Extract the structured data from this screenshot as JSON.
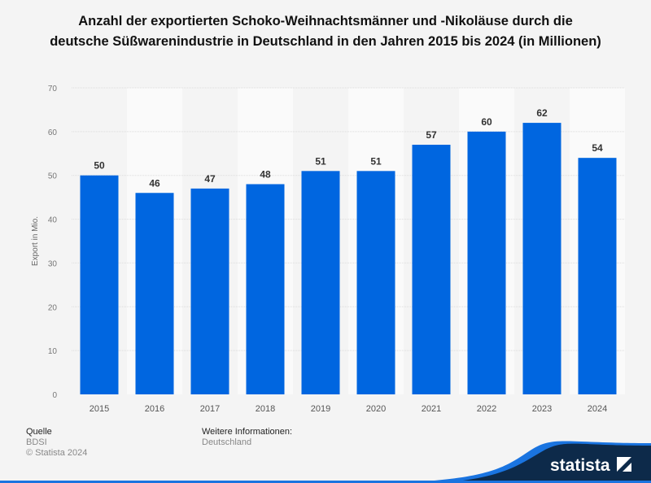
{
  "chart_data": {
    "type": "bar",
    "title": "Anzahl der exportierten Schoko-Weihnachtsmänner und -Nikoläuse durch die deutsche Süßwarenindustrie in Deutschland in den Jahren 2015 bis 2024 (in Millionen)",
    "categories": [
      "2015",
      "2016",
      "2017",
      "2018",
      "2019",
      "2020",
      "2021",
      "2022",
      "2023",
      "2024"
    ],
    "values": [
      50,
      46,
      47,
      48,
      51,
      51,
      57,
      60,
      62,
      54
    ],
    "xlabel": "",
    "ylabel": "Export in Mio.",
    "ylim": [
      0,
      70
    ],
    "yticks": [
      0,
      10,
      20,
      30,
      40,
      50,
      60,
      70
    ],
    "grid": true,
    "data_labels": true,
    "bar_color": "#0066e0"
  },
  "footer": {
    "source_heading": "Quelle",
    "source": "BDSI",
    "copyright": "© Statista 2024",
    "info_heading": "Weitere Informationen:",
    "info": "Deutschland",
    "logo_text": "statista"
  }
}
